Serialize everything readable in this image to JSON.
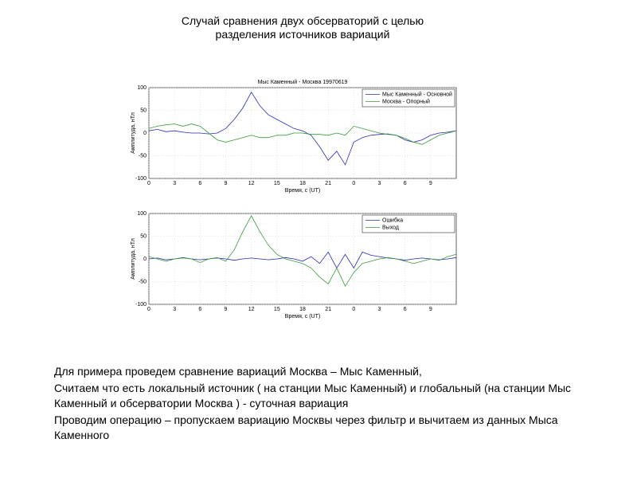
{
  "title": "Случай сравнения двух обсерваторий с целью разделения источников вариаций",
  "paragraphs": [
    "Для примера проведем сравнение вариаций Москва – Мыс Каменный,",
    "Считаем что есть локальный источник ( на станции Мыс Каменный) и глобальный (на станции Мыс Каменный и обсерватории Москва ) - суточная вариация",
    "Проводим операцию – пропускаем вариацию Москвы через фильтр и вычитаем из данных Мыса Каменного"
  ],
  "chart_data": [
    {
      "type": "line",
      "title": "Мыс Каменный - Москва 19970619",
      "xlabel": "Время, с (UT)",
      "ylabel": "Амплитуда, нТл",
      "x": [
        0,
        1,
        2,
        3,
        4,
        5,
        6,
        7,
        8,
        9,
        10,
        11,
        12,
        13,
        14,
        15,
        16,
        17,
        18,
        19,
        20,
        21,
        22,
        23,
        24,
        25,
        26,
        27,
        28,
        29,
        30,
        31,
        32,
        33,
        34,
        35,
        36
      ],
      "series": [
        {
          "name": "Мыс Каменный - Основной",
          "color": "#2b2bb8",
          "values": [
            5,
            8,
            3,
            5,
            2,
            0,
            0,
            -2,
            0,
            10,
            30,
            55,
            90,
            60,
            40,
            30,
            20,
            10,
            5,
            -5,
            -30,
            -60,
            -40,
            -70,
            -20,
            -10,
            -5,
            -3,
            -2,
            -5,
            -15,
            -20,
            -15,
            -5,
            0,
            2,
            5
          ]
        },
        {
          "name": "Москва - Опорный",
          "color": "#3a9a3a",
          "values": [
            10,
            15,
            18,
            20,
            15,
            20,
            15,
            0,
            -15,
            -20,
            -15,
            -10,
            -5,
            -10,
            -10,
            -5,
            -5,
            0,
            0,
            -3,
            -3,
            -5,
            0,
            -5,
            15,
            10,
            5,
            0,
            -3,
            -5,
            -12,
            -20,
            -25,
            -15,
            -5,
            0,
            5
          ]
        }
      ],
      "xlim": [
        0,
        36
      ],
      "ylim": [
        -100,
        100
      ],
      "xticks": [
        0,
        3,
        6,
        9,
        12,
        15,
        18,
        21,
        {
          "value": 24,
          "label": "0"
        },
        {
          "value": 27,
          "label": "3"
        },
        {
          "value": 30,
          "label": "6"
        },
        {
          "value": 33,
          "label": "9"
        }
      ],
      "yticks": [
        100,
        50,
        0,
        -50,
        -100
      ],
      "grid": true,
      "legend": "top-right"
    },
    {
      "type": "line",
      "xlabel": "Время, с (UT)",
      "ylabel": "Амплитуда, нТл",
      "x": [
        0,
        1,
        2,
        3,
        4,
        5,
        6,
        7,
        8,
        9,
        10,
        11,
        12,
        13,
        14,
        15,
        16,
        17,
        18,
        19,
        20,
        21,
        22,
        23,
        24,
        25,
        26,
        27,
        28,
        29,
        30,
        31,
        32,
        33,
        34,
        35,
        36
      ],
      "series": [
        {
          "name": "Ошибка",
          "color": "#2b2bb8",
          "values": [
            0,
            2,
            -2,
            0,
            3,
            0,
            -2,
            0,
            2,
            0,
            -3,
            0,
            2,
            0,
            -2,
            0,
            3,
            0,
            -5,
            5,
            -10,
            15,
            -20,
            10,
            -20,
            15,
            8,
            5,
            2,
            0,
            -3,
            0,
            2,
            0,
            -2,
            0,
            3
          ]
        },
        {
          "name": "Выход",
          "color": "#3a9a3a",
          "values": [
            5,
            0,
            -5,
            0,
            2,
            0,
            -8,
            0,
            3,
            -5,
            20,
            60,
            95,
            60,
            30,
            10,
            0,
            -5,
            -10,
            -20,
            -40,
            -55,
            -20,
            -60,
            -30,
            -10,
            -5,
            0,
            3,
            0,
            -5,
            -10,
            -5,
            0,
            -3,
            5,
            10
          ]
        }
      ],
      "xlim": [
        0,
        36
      ],
      "ylim": [
        -100,
        100
      ],
      "xticks": [
        0,
        3,
        6,
        9,
        12,
        15,
        18,
        21,
        {
          "value": 24,
          "label": "0"
        },
        {
          "value": 27,
          "label": "3"
        },
        {
          "value": 30,
          "label": "6"
        },
        {
          "value": 33,
          "label": "9"
        }
      ],
      "yticks": [
        100,
        50,
        0,
        -50,
        -100
      ],
      "grid": true,
      "legend": "top-right"
    }
  ]
}
